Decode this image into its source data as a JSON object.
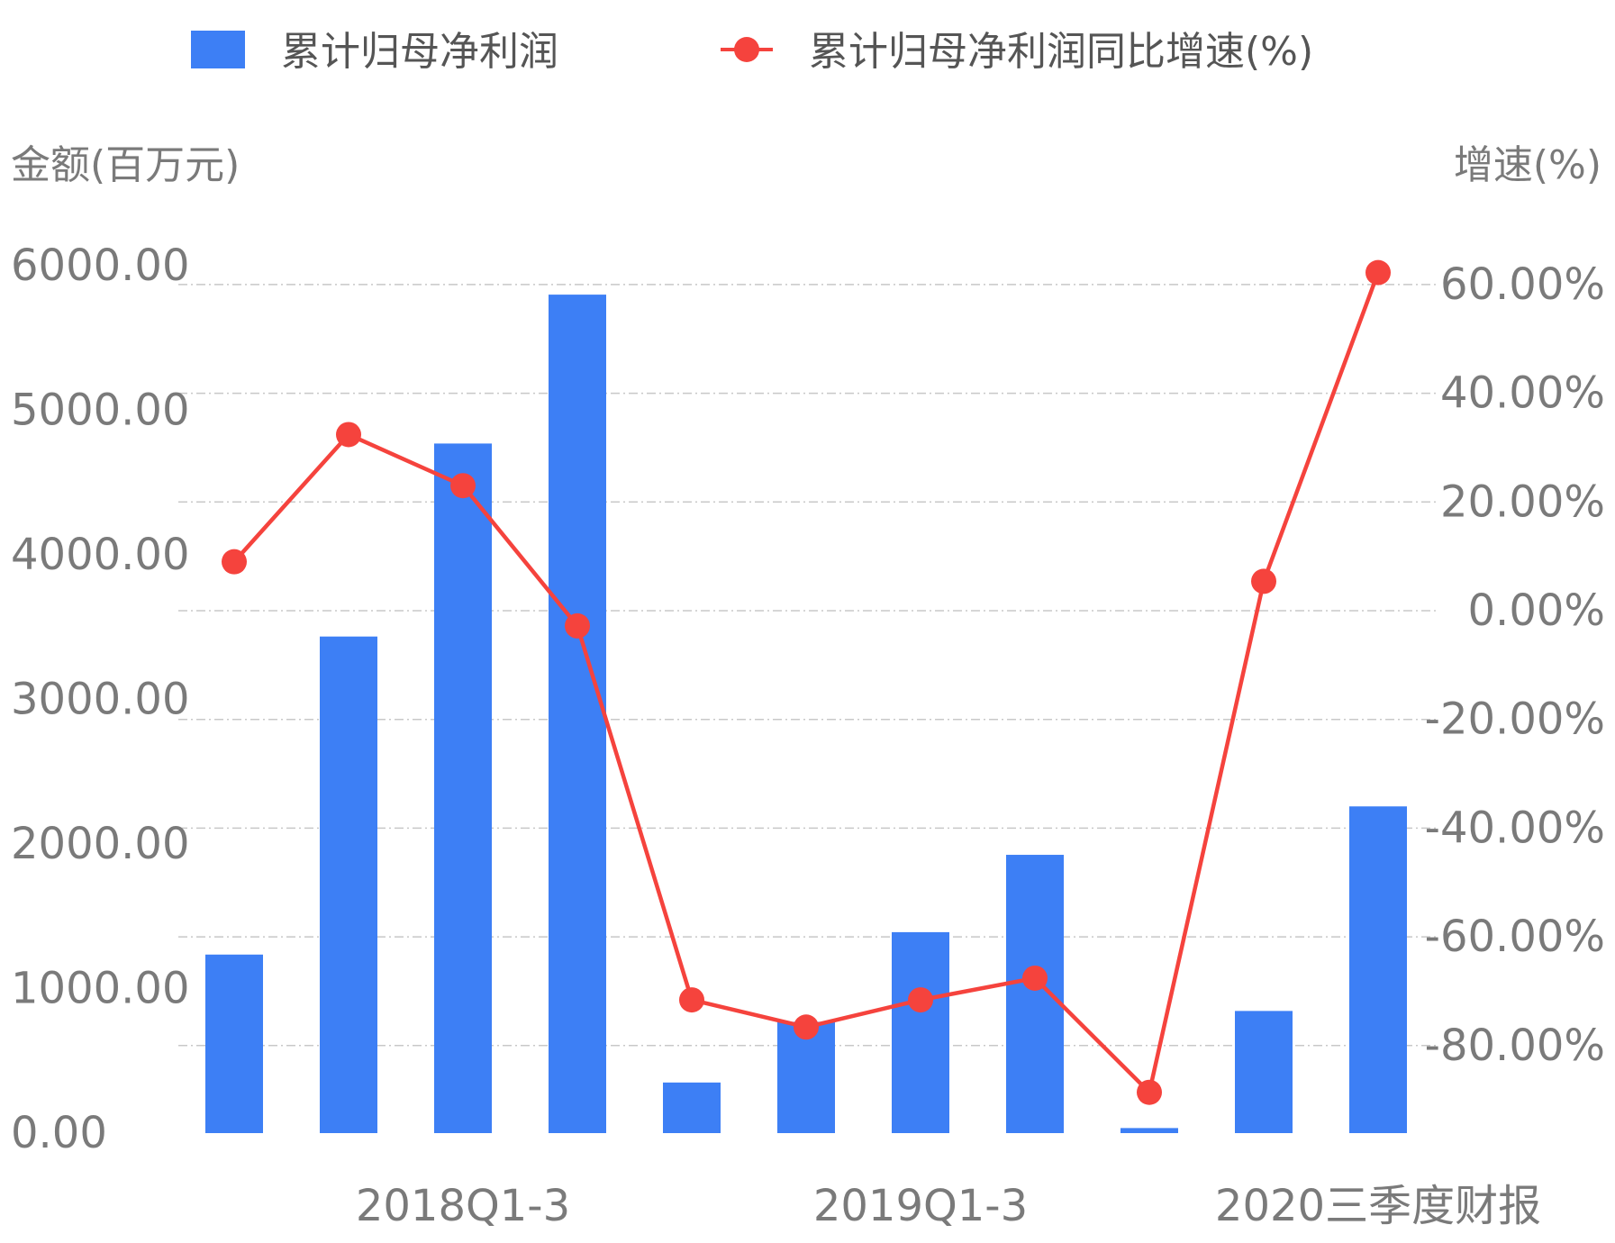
{
  "chart_data": {
    "type": "bar",
    "legend": {
      "placement": "top",
      "bar_label": "累计归母净利润",
      "line_label": "累计归母净利润同比增速(%)"
    },
    "ylabel_left": "金额(百万元)",
    "ylabel_right": "增速(%)",
    "ylim_left": [
      0,
      6000
    ],
    "ylim_right": [
      -100,
      65
    ],
    "left_ticks": [
      "0.00",
      "1000.00",
      "2000.00",
      "3000.00",
      "4000.00",
      "5000.00",
      "6000.00"
    ],
    "right_ticks": [
      "-80.00%",
      "-60.00%",
      "-40.00%",
      "-20.00%",
      "0.00%",
      "20.00%",
      "40.00%",
      "60.00%"
    ],
    "x_tick_labels": [
      {
        "index": 2,
        "label": "2018Q1-3"
      },
      {
        "index": 6,
        "label": "2019Q1-3"
      },
      {
        "index": 10,
        "label": "2020三季度财报"
      }
    ],
    "series": [
      {
        "name": "累计归母净利润",
        "type": "bar",
        "color": "#3d7ff5",
        "values": [
          1235,
          3435,
          4770,
          5800,
          350,
          770,
          1390,
          1925,
          35,
          845,
          2260
        ]
      },
      {
        "name": "累计归母净利润同比增速(%)",
        "type": "line",
        "color": "#f5433d",
        "values": [
          9,
          32.4,
          23,
          -2.8,
          -71.6,
          -76.6,
          -71.6,
          -67.6,
          -88.6,
          5.4,
          62.2
        ]
      }
    ],
    "grid": true
  }
}
